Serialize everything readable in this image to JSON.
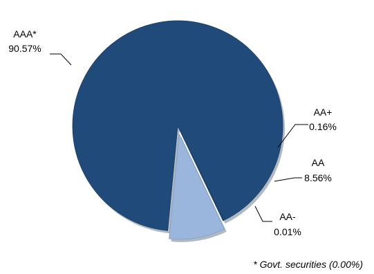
{
  "chart_data": {
    "type": "pie",
    "slices": [
      {
        "label": "AAA*",
        "value": 90.57,
        "value_label": "90.57%",
        "color": "#1f4a7a",
        "exploded": false
      },
      {
        "label": "AA+",
        "value": 0.16,
        "value_label": "0.16%",
        "color": "#1f4a7a",
        "exploded": false
      },
      {
        "label": "AA",
        "value": 8.56,
        "value_label": "8.56%",
        "color": "#9ab6dc",
        "exploded": true
      },
      {
        "label": "AA-",
        "value": 0.01,
        "value_label": "0.01%",
        "color": "#1f4a7a",
        "exploded": false
      }
    ],
    "footnote": "* Govt. securities (0.00%)"
  }
}
